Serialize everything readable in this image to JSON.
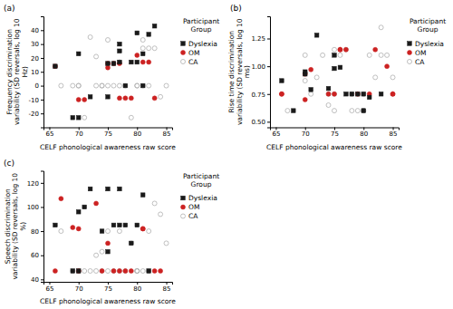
{
  "chart_data": [
    {
      "type": "scatter",
      "title": "(a)",
      "x_label": "CELF phonological awareness raw score",
      "y_label": "Frequency discrimination variability (SD reversals, log 10 Hz)",
      "xlim": [
        64,
        86
      ],
      "ylim": [
        -30,
        50
      ],
      "xticks": [
        65,
        70,
        75,
        80,
        85
      ],
      "yticks": [
        -20,
        -10,
        0,
        10,
        20,
        30,
        40
      ],
      "legend": "right",
      "legend_title": "Participant\nGroup",
      "series": [
        {
          "name": "Dyslexia",
          "color": "#1a1a1a",
          "marker": "square",
          "x": [
            66,
            69,
            70,
            70,
            72,
            75,
            75,
            76,
            77,
            77,
            77,
            78,
            79,
            80,
            80,
            81,
            81,
            82,
            83
          ],
          "values": [
            14,
            -23,
            -23,
            23,
            -8,
            -8,
            16,
            16,
            17,
            25,
            30,
            0,
            17,
            17,
            38,
            23,
            0,
            37,
            43
          ]
        },
        {
          "name": "OM",
          "color": "#cc2222",
          "marker": "circle",
          "x": [
            66,
            70,
            71,
            75,
            75,
            76,
            77,
            77,
            78,
            79,
            80,
            81,
            82,
            83
          ],
          "values": [
            14,
            -10,
            -10,
            16,
            13,
            16,
            -9,
            16,
            -9,
            -9,
            22,
            17,
            17,
            -9
          ]
        },
        {
          "name": "CA",
          "color": "#b0b0b0",
          "marker": "open-circle",
          "x": [
            67,
            69,
            70,
            70,
            71,
            72,
            73,
            73,
            74,
            74,
            75,
            75,
            76,
            77,
            77,
            78,
            79,
            80,
            80,
            81,
            81,
            81,
            82,
            82,
            83,
            84,
            85
          ],
          "values": [
            0,
            0,
            0,
            0,
            -23,
            35,
            21,
            0,
            0,
            0,
            33,
            0,
            0,
            17,
            0,
            0,
            -23,
            0,
            0,
            0,
            27,
            33,
            27,
            0,
            27,
            -8,
            0
          ]
        }
      ]
    },
    {
      "type": "scatter",
      "title": "(b)",
      "x_label": "CELF phonological awareness raw score",
      "y_label": "Rise time discrimination variability (SD reversals, log 10 ms)",
      "xlim": [
        64,
        86
      ],
      "ylim": [
        0.45,
        1.45
      ],
      "xticks": [
        65,
        70,
        75,
        80,
        85
      ],
      "yticks": [
        {
          "value": 0.5,
          "label": "0.50"
        },
        0.75,
        {
          "value": 1.0,
          "label": "1.00"
        },
        1.25
      ],
      "legend": "right",
      "legend_title": "Participant\nGroup",
      "series": [
        {
          "name": "Dyslexia",
          "color": "#1a1a1a",
          "marker": "square",
          "x": [
            66,
            68,
            70,
            70,
            71,
            72,
            74,
            75,
            75,
            76,
            77,
            78,
            79,
            80,
            80,
            81,
            83
          ],
          "values": [
            0.87,
            0.6,
            0.93,
            0.95,
            0.79,
            1.28,
            0.8,
            1.1,
            0.98,
            0.99,
            0.75,
            0.75,
            0.75,
            0.75,
            0.6,
            0.72,
            0.75
          ]
        },
        {
          "name": "OM",
          "color": "#cc2222",
          "marker": "circle",
          "x": [
            66,
            66,
            70,
            70,
            71,
            74,
            75,
            76,
            76,
            77,
            79,
            81,
            82,
            84,
            85,
            85
          ],
          "values": [
            0.75,
            0.75,
            0.7,
            0.93,
            0.97,
            0.75,
            0.75,
            1.15,
            1.15,
            1.15,
            0.75,
            0.75,
            1.15,
            1.0,
            0.75,
            0.75
          ]
        },
        {
          "name": "CA",
          "color": "#b0b0b0",
          "marker": "open-circle",
          "x": [
            67,
            70,
            70,
            71,
            72,
            73,
            74,
            74,
            75,
            75,
            75,
            76,
            77,
            78,
            78,
            79,
            79,
            80,
            80,
            80,
            81,
            82,
            83,
            83,
            84,
            85
          ],
          "values": [
            0.6,
            0.87,
            1.1,
            0.75,
            0.9,
            1.1,
            0.75,
            0.65,
            0.75,
            1.15,
            0.6,
            1.1,
            1.15,
            0.75,
            0.6,
            0.6,
            0.75,
            0.75,
            0.6,
            0.6,
            1.1,
            0.9,
            1.1,
            1.35,
            1.1,
            0.9
          ]
        }
      ]
    },
    {
      "type": "scatter",
      "title": "(c)",
      "x_label": "CELF phonological awareness raw score",
      "y_label": "Speech discrimination variability (SD reversals, log 10 %)",
      "xlim": [
        64,
        86
      ],
      "ylim": [
        38,
        130
      ],
      "xticks": [
        65,
        70,
        75,
        80,
        85
      ],
      "yticks": [
        40,
        60,
        80,
        100,
        120
      ],
      "legend": "right",
      "legend_title": "Participant\nGroup",
      "series": [
        {
          "name": "Dyslexia",
          "color": "#1a1a1a",
          "marker": "square",
          "x": [
            66,
            69,
            70,
            70,
            71,
            72,
            74,
            75,
            75,
            76,
            77,
            77,
            78,
            79,
            80,
            81,
            82
          ],
          "values": [
            85,
            47,
            96,
            47,
            100,
            115,
            80,
            115,
            63,
            85,
            85,
            115,
            85,
            70,
            85,
            110,
            47
          ]
        },
        {
          "name": "OM",
          "color": "#cc2222",
          "marker": "circle",
          "x": [
            66,
            67,
            69,
            70,
            70,
            73,
            74,
            75,
            76,
            77,
            78,
            79,
            81,
            81,
            83,
            84
          ],
          "values": [
            47,
            107,
            83,
            82,
            47,
            103,
            47,
            70,
            47,
            47,
            47,
            47,
            82,
            82,
            47,
            47
          ]
        },
        {
          "name": "CA",
          "color": "#b0b0b0",
          "marker": "open-circle",
          "x": [
            67,
            69,
            70,
            70,
            71,
            72,
            73,
            73,
            74,
            74,
            75,
            75,
            76,
            77,
            77,
            78,
            79,
            80,
            80,
            80,
            81,
            82,
            82,
            83,
            84,
            85
          ],
          "values": [
            80,
            47,
            47,
            47,
            47,
            47,
            60,
            47,
            63,
            47,
            80,
            47,
            47,
            47,
            80,
            47,
            70,
            47,
            47,
            47,
            47,
            80,
            47,
            103,
            94,
            70
          ]
        }
      ]
    }
  ]
}
